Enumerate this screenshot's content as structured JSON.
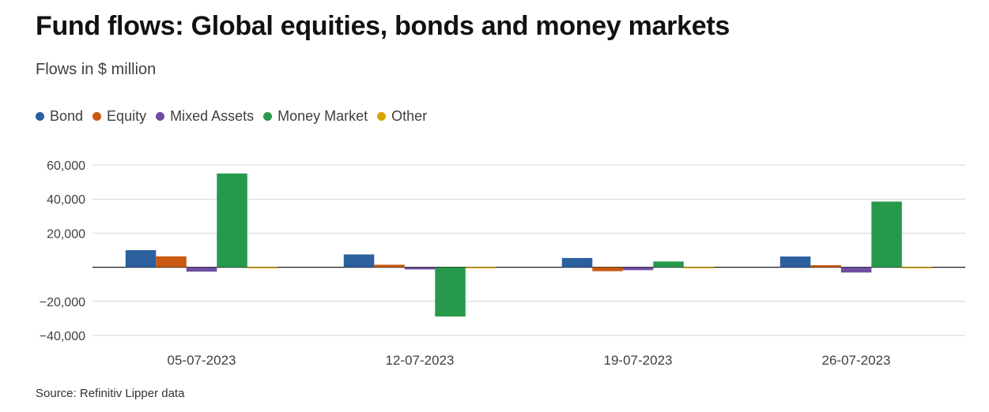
{
  "title": "Fund flows: Global equities, bonds and money markets",
  "subtitle": "Flows in $ million",
  "source": "Source: Refinitiv Lipper data",
  "chart_data": {
    "type": "bar",
    "categories": [
      "05-07-2023",
      "12-07-2023",
      "19-07-2023",
      "26-07-2023"
    ],
    "series": [
      {
        "name": "Bond",
        "color": "#2b5f9e",
        "values": [
          10000,
          7500,
          5400,
          6300
        ]
      },
      {
        "name": "Equity",
        "color": "#c85a12",
        "values": [
          6400,
          1500,
          -2300,
          1200
        ]
      },
      {
        "name": "Mixed Assets",
        "color": "#6f4ea0",
        "values": [
          -2600,
          -1300,
          -1700,
          -3100
        ]
      },
      {
        "name": "Money Market",
        "color": "#27994b",
        "values": [
          55000,
          -28900,
          3400,
          38500
        ]
      },
      {
        "name": "Other",
        "color": "#d9a400",
        "values": [
          0,
          -500,
          0,
          -300
        ]
      }
    ],
    "yticks": [
      60000,
      40000,
      20000,
      -20000,
      -40000
    ],
    "ytick_labels": [
      "60,000",
      "40,000",
      "20,000",
      "−20,000",
      "−40,000"
    ],
    "ylim": [
      -40000,
      60000
    ],
    "grid": true,
    "legend_position": "top-left"
  }
}
